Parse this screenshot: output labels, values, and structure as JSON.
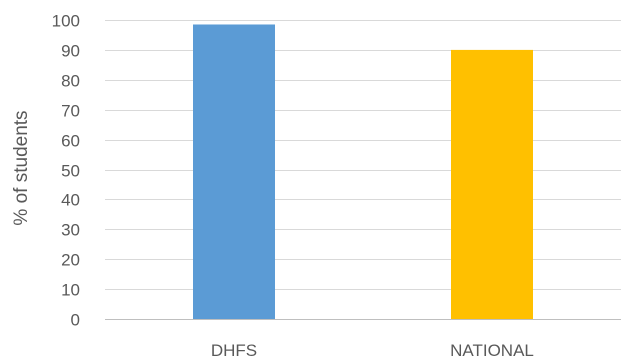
{
  "chart_data": {
    "type": "bar",
    "categories": [
      "DHFS",
      "NATIONAL"
    ],
    "values": [
      98.5,
      90
    ],
    "colors": [
      "#5b9bd5",
      "#ffc000"
    ],
    "title": "",
    "xlabel": "",
    "ylabel": "% of students",
    "ylim": [
      0,
      100
    ],
    "yticks": [
      0,
      10,
      20,
      30,
      40,
      50,
      60,
      70,
      80,
      90,
      100
    ],
    "grid": true,
    "legend": "none"
  }
}
